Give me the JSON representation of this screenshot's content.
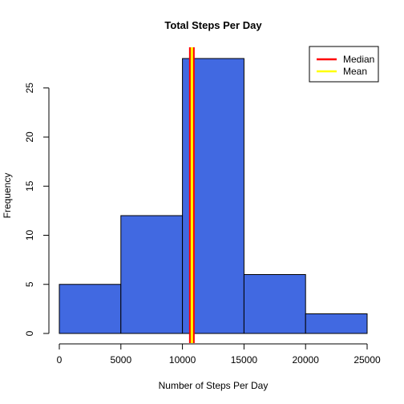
{
  "chart_data": {
    "type": "bar",
    "title": "Total Steps Per Day",
    "xlabel": "Number of Steps Per Day",
    "ylabel": "Frequency",
    "bins": [
      {
        "from": 0,
        "to": 5000,
        "count": 5
      },
      {
        "from": 5000,
        "to": 10000,
        "count": 12
      },
      {
        "from": 10000,
        "to": 15000,
        "count": 28
      },
      {
        "from": 15000,
        "to": 20000,
        "count": 6
      },
      {
        "from": 20000,
        "to": 25000,
        "count": 2
      }
    ],
    "xlim": [
      0,
      25000
    ],
    "ylim": [
      0,
      28
    ],
    "x_ticks": [
      0,
      5000,
      10000,
      15000,
      20000,
      25000
    ],
    "y_ticks": [
      0,
      5,
      10,
      15,
      20,
      25
    ],
    "bar_color": "#4169E1",
    "grid": false,
    "reference_lines": [
      {
        "name": "Median",
        "value": 10765,
        "color": "#FF0000"
      },
      {
        "name": "Mean",
        "value": 10766.19,
        "color": "#FFFF00"
      }
    ],
    "legend_placement": "top-right"
  }
}
